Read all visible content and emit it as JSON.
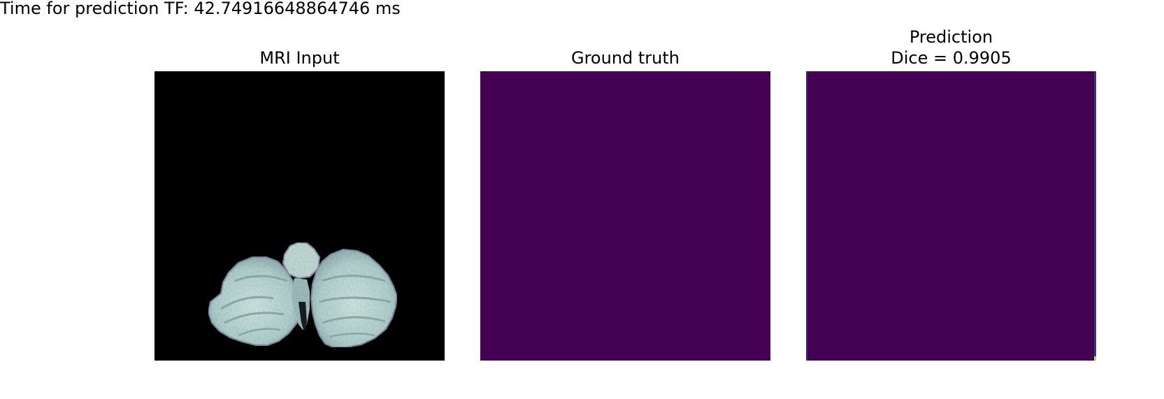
{
  "header": {
    "timing": "Time for prediction TF: 42.74916648864746 ms"
  },
  "panels": [
    {
      "title": "MRI Input",
      "image": "grayscale-mri-slice-cerebellum",
      "background_color": "#000000",
      "tissue_color": "#b9d8d4"
    },
    {
      "title": "Ground truth",
      "image": "segmentation-mask-empty",
      "fill_color": "#440154"
    },
    {
      "title_line1": "Prediction",
      "title_line2": "Dice = 0.9905",
      "image": "segmentation-mask-predicted",
      "fill_color": "#440154"
    }
  ]
}
